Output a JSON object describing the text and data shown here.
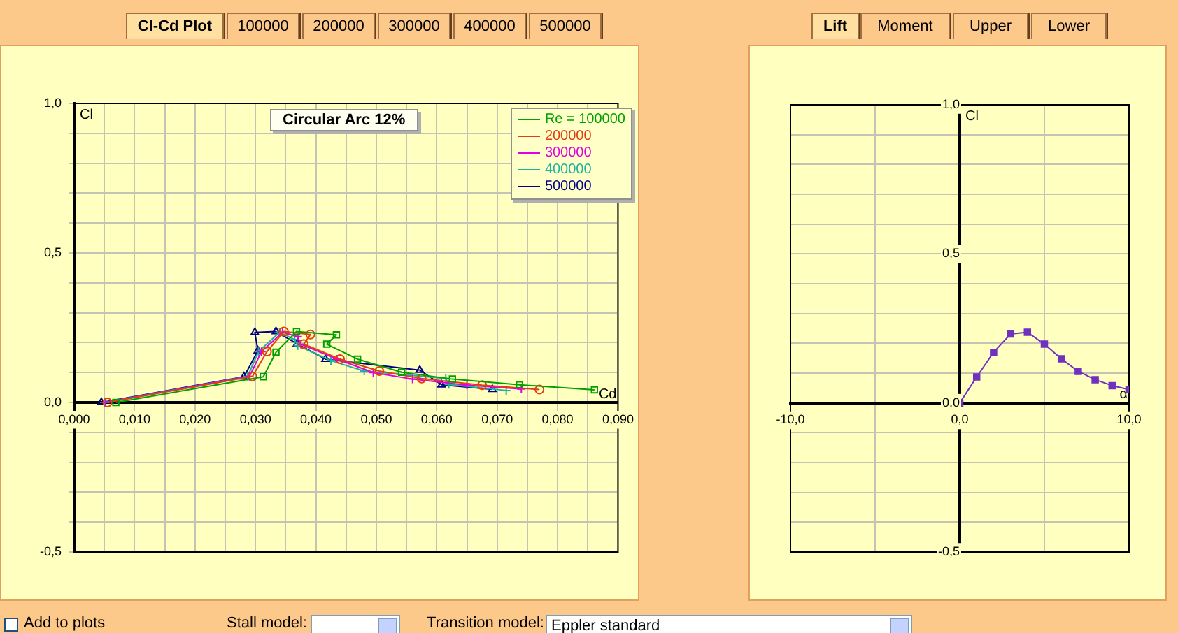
{
  "chart_data": [
    {
      "type": "line",
      "title": "Circular Arc 12%",
      "xlabel": "Cd",
      "ylabel": "Cl",
      "legend": "top right",
      "grid": true,
      "line_style": "solid",
      "annotations": [
        "Cl-Cd Plot",
        "100000",
        "200000",
        "300000",
        "400000",
        "500000",
        "Add to plots",
        "Stall model:",
        "Transition model:",
        "Eppler standard"
      ],
      "xlim": [
        0,
        0.09
      ],
      "ylim": [
        -0.5,
        1.0
      ],
      "xticks": [
        {
          "value": 0,
          "label": "0,000"
        },
        {
          "value": 0.005,
          "label": null
        },
        {
          "value": 0.01,
          "label": "0,010"
        },
        {
          "value": 0.015,
          "label": null
        },
        {
          "value": 0.02,
          "label": "0,020"
        },
        {
          "value": 0.025,
          "label": null
        },
        {
          "value": 0.03,
          "label": "0,030"
        },
        {
          "value": 0.035,
          "label": null
        },
        {
          "value": 0.04,
          "label": "0,040"
        },
        {
          "value": 0.045,
          "label": null
        },
        {
          "value": 0.05,
          "label": "0,050"
        },
        {
          "value": 0.055,
          "label": null
        },
        {
          "value": 0.06,
          "label": "0,060"
        },
        {
          "value": 0.065,
          "label": null
        },
        {
          "value": 0.07,
          "label": "0,070"
        },
        {
          "value": 0.075,
          "label": null
        },
        {
          "value": 0.08,
          "label": "0,080"
        },
        {
          "value": 0.085,
          "label": null
        },
        {
          "value": 0.09,
          "label": "0,090"
        }
      ],
      "yticks": [
        {
          "value": -0.5,
          "label": "-0,5"
        },
        {
          "value": -0.4,
          "label": null
        },
        {
          "value": -0.3,
          "label": null
        },
        {
          "value": -0.2,
          "label": null
        },
        {
          "value": -0.1,
          "label": null
        },
        {
          "value": 0,
          "label": "0,0"
        },
        {
          "value": 0.1,
          "label": null
        },
        {
          "value": 0.2,
          "label": null
        },
        {
          "value": 0.3,
          "label": null
        },
        {
          "value": 0.4,
          "label": null
        },
        {
          "value": 0.5,
          "label": "0,5"
        },
        {
          "value": 0.6,
          "label": null
        },
        {
          "value": 0.7,
          "label": null
        },
        {
          "value": 0.8,
          "label": null
        },
        {
          "value": 0.9,
          "label": null
        },
        {
          "value": 1.0,
          "label": "1,0"
        }
      ],
      "series": [
        {
          "name": "Re = 100000",
          "color": "#00a000",
          "marker": "square",
          "x": [
            0.0069,
            0.0313,
            0.0334,
            0.0368,
            0.0434,
            0.0418,
            0.0469,
            0.0542,
            0.0626,
            0.0737,
            0.0861
          ],
          "values": [
            0,
            0.086,
            0.168,
            0.237,
            0.226,
            0.195,
            0.145,
            0.101,
            0.078,
            0.059,
            0.042
          ]
        },
        {
          "name": "200000",
          "color": "#e04010",
          "marker": "circle",
          "x": [
            0.0055,
            0.0295,
            0.0319,
            0.0347,
            0.0391,
            0.038,
            0.044,
            0.0505,
            0.0575,
            0.0675,
            0.077
          ],
          "values": [
            0,
            0.087,
            0.17,
            0.237,
            0.227,
            0.195,
            0.145,
            0.105,
            0.08,
            0.058,
            0.043
          ]
        },
        {
          "name": "300000",
          "color": "#e000e0",
          "marker": "cross",
          "x": [
            0.0052,
            0.029,
            0.031,
            0.0345,
            0.037,
            0.0375,
            0.0435,
            0.0495,
            0.056,
            0.065,
            0.074
          ],
          "values": [
            0,
            0.087,
            0.17,
            0.235,
            0.22,
            0.195,
            0.145,
            0.1,
            0.078,
            0.058,
            0.045
          ]
        },
        {
          "name": "400000",
          "color": "#20b0a0",
          "marker": "cross",
          "x": [
            0.005,
            0.0287,
            0.0305,
            0.034,
            0.0365,
            0.037,
            0.0425,
            0.048,
            0.0615,
            0.062,
            0.0715
          ],
          "values": [
            0,
            0.087,
            0.17,
            0.235,
            0.21,
            0.19,
            0.14,
            0.105,
            0.08,
            0.06,
            0.04
          ]
        },
        {
          "name": "500000",
          "color": "#000080",
          "marker": "triangle",
          "x": [
            0.0045,
            0.0281,
            0.0304,
            0.0299,
            0.0334,
            0.0369,
            0.0416,
            0.0572,
            0.0608,
            0.0692
          ],
          "values": [
            0,
            0.086,
            0.173,
            0.234,
            0.237,
            0.196,
            0.145,
            0.108,
            0.059,
            0.044
          ]
        }
      ]
    },
    {
      "type": "line",
      "xlabel": "α",
      "ylabel": "Cl",
      "grid": true,
      "marker": "square",
      "line_style": "solid",
      "annotations": [
        "Lift",
        "Moment",
        "Upper",
        "Lower"
      ],
      "xlim": [
        -10,
        10
      ],
      "ylim": [
        -0.5,
        1.0
      ],
      "xticks": [
        {
          "value": -10,
          "label": "-10,0"
        },
        {
          "value": -5,
          "label": null
        },
        {
          "value": 0,
          "label": "0,0"
        },
        {
          "value": 5,
          "label": null
        },
        {
          "value": 10,
          "label": "10,0"
        }
      ],
      "yticks": [
        {
          "value": -0.5,
          "label": "-0,5"
        },
        {
          "value": -0.4,
          "label": null
        },
        {
          "value": -0.3,
          "label": null
        },
        {
          "value": -0.2,
          "label": null
        },
        {
          "value": -0.1,
          "label": null
        },
        {
          "value": 0,
          "label": "0,0"
        },
        {
          "value": 0.1,
          "label": null
        },
        {
          "value": 0.2,
          "label": null
        },
        {
          "value": 0.3,
          "label": null
        },
        {
          "value": 0.4,
          "label": null
        },
        {
          "value": 0.5,
          "label": "0,5"
        },
        {
          "value": 0.6,
          "label": null
        },
        {
          "value": 0.7,
          "label": null
        },
        {
          "value": 0.8,
          "label": null
        },
        {
          "value": 0.9,
          "label": null
        },
        {
          "value": 1.0,
          "label": "1,0"
        }
      ],
      "series": [
        {
          "color": "#7030c0",
          "x": [
            0,
            1,
            2,
            3,
            4,
            5,
            6,
            7,
            8,
            9,
            10
          ],
          "values": [
            0,
            0.087,
            0.17,
            0.231,
            0.237,
            0.197,
            0.148,
            0.106,
            0.078,
            0.058,
            0.045
          ]
        }
      ]
    }
  ]
}
